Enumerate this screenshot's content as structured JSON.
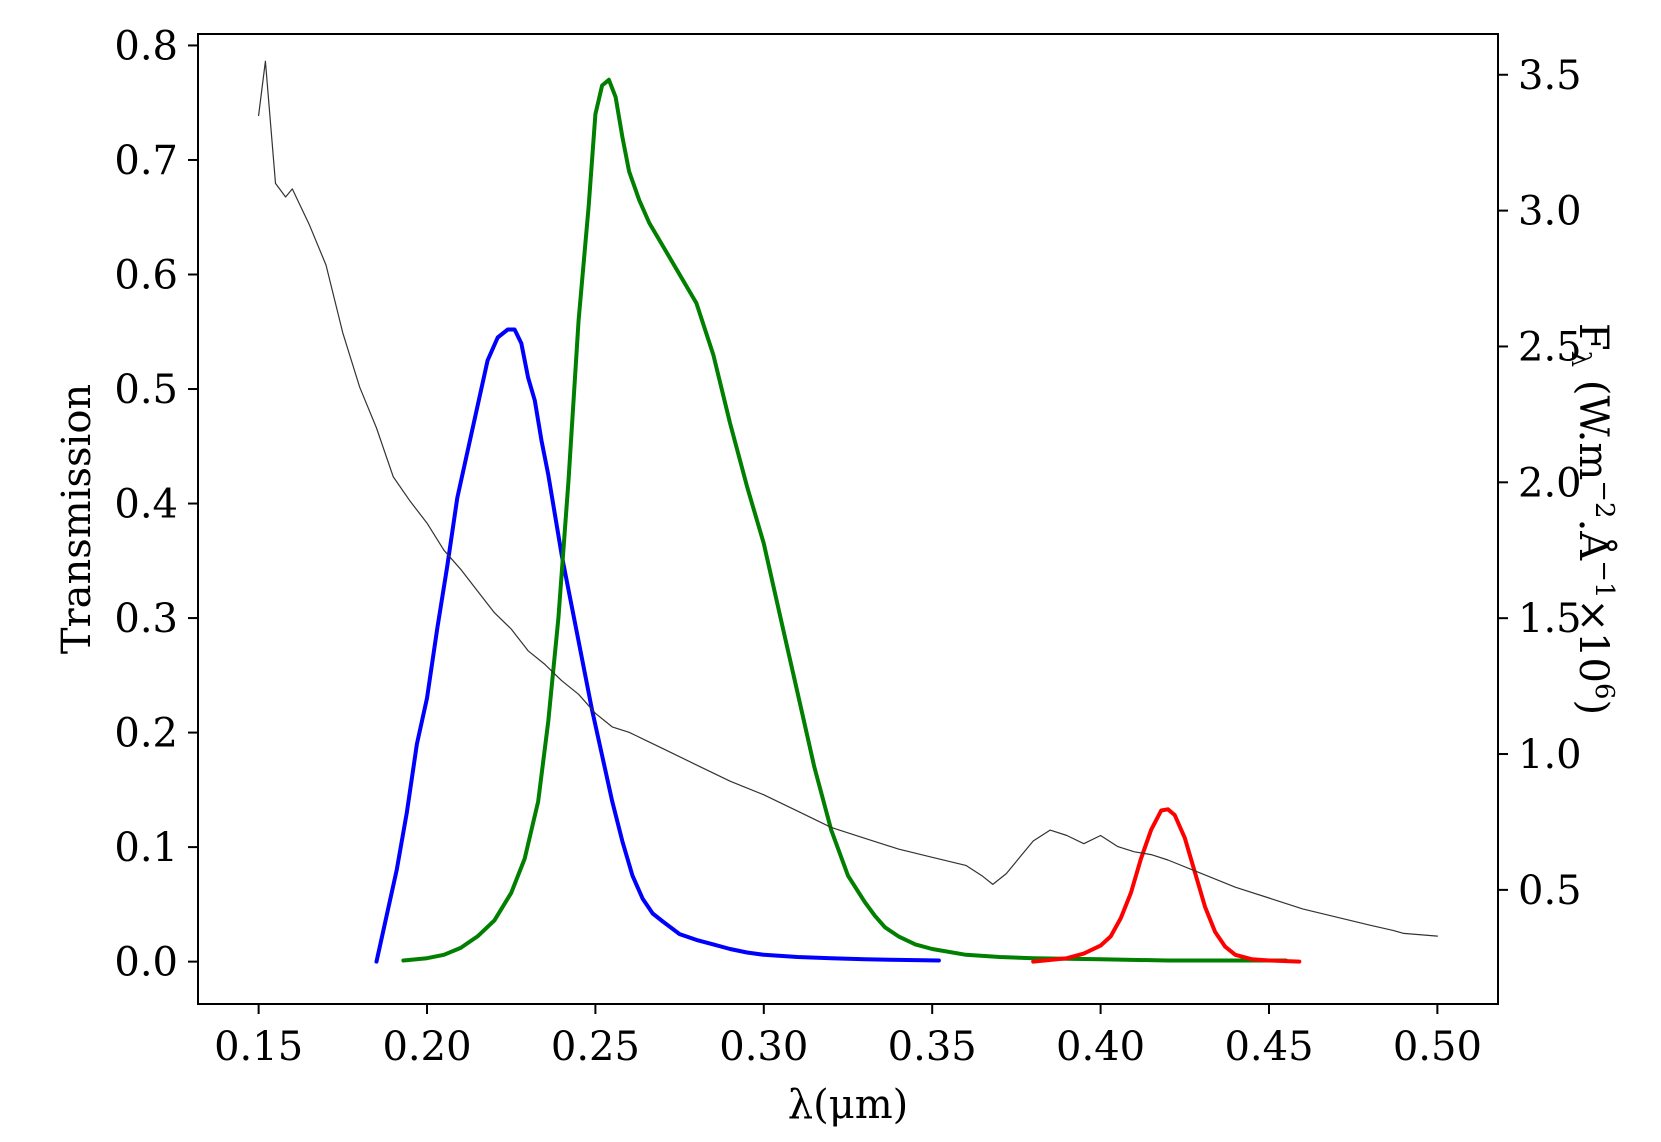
{
  "chart_data": {
    "type": "line",
    "title": "",
    "xlabel": "λ(μm)",
    "ylabel": "Transmission",
    "y2label": "F",
    "y2label_sub": "λ",
    "y2label_rest": " (W.m",
    "y2label_exp1": "−2",
    "y2label_mid": ".Å",
    "y2label_exp2": "−1",
    "y2label_times": "×10",
    "y2label_exp3": "6",
    "y2label_close": ")",
    "xlim": [
      0.132,
      0.518
    ],
    "ylim": [
      -0.037,
      0.81
    ],
    "y2lim": [
      0.08,
      3.65
    ],
    "grid": false,
    "legend": "none",
    "x_ticks": [
      "0.15",
      "0.20",
      "0.25",
      "0.30",
      "0.35",
      "0.40",
      "0.45",
      "0.50"
    ],
    "x_tick_values": [
      0.15,
      0.2,
      0.25,
      0.3,
      0.35,
      0.4,
      0.45,
      0.5
    ],
    "y_ticks": [
      "0.0",
      "0.1",
      "0.2",
      "0.3",
      "0.4",
      "0.5",
      "0.6",
      "0.7",
      "0.8"
    ],
    "y_tick_values": [
      0.0,
      0.1,
      0.2,
      0.3,
      0.4,
      0.5,
      0.6,
      0.7,
      0.8
    ],
    "y2_ticks": [
      "0.5",
      "1.0",
      "1.5",
      "2.0",
      "2.5",
      "3.0",
      "3.5"
    ],
    "y2_tick_values": [
      0.5,
      1.0,
      1.5,
      2.0,
      2.5,
      3.0,
      3.5
    ],
    "series": [
      {
        "axis": "left",
        "color": "#0000ff",
        "x": [
          0.185,
          0.188,
          0.191,
          0.194,
          0.197,
          0.2,
          0.203,
          0.206,
          0.209,
          0.212,
          0.215,
          0.218,
          0.221,
          0.224,
          0.226,
          0.228,
          0.23,
          0.232,
          0.234,
          0.236,
          0.238,
          0.24,
          0.243,
          0.246,
          0.249,
          0.252,
          0.255,
          0.258,
          0.261,
          0.264,
          0.267,
          0.27,
          0.275,
          0.28,
          0.285,
          0.29,
          0.295,
          0.3,
          0.31,
          0.32,
          0.33,
          0.34,
          0.352
        ],
        "y": [
          0.0,
          0.04,
          0.08,
          0.13,
          0.19,
          0.23,
          0.29,
          0.345,
          0.405,
          0.445,
          0.485,
          0.525,
          0.545,
          0.552,
          0.552,
          0.54,
          0.51,
          0.49,
          0.455,
          0.425,
          0.39,
          0.355,
          0.31,
          0.265,
          0.22,
          0.18,
          0.14,
          0.105,
          0.075,
          0.055,
          0.042,
          0.035,
          0.024,
          0.019,
          0.015,
          0.011,
          0.008,
          0.006,
          0.004,
          0.003,
          0.002,
          0.0015,
          0.001
        ]
      },
      {
        "axis": "left",
        "color": "#007f00",
        "x": [
          0.193,
          0.2,
          0.205,
          0.21,
          0.215,
          0.22,
          0.225,
          0.229,
          0.233,
          0.236,
          0.239,
          0.242,
          0.245,
          0.248,
          0.25,
          0.252,
          0.254,
          0.256,
          0.258,
          0.26,
          0.263,
          0.266,
          0.27,
          0.275,
          0.28,
          0.285,
          0.29,
          0.295,
          0.3,
          0.305,
          0.31,
          0.315,
          0.32,
          0.325,
          0.33,
          0.333,
          0.336,
          0.34,
          0.345,
          0.35,
          0.36,
          0.37,
          0.38,
          0.4,
          0.42,
          0.44,
          0.455
        ],
        "y": [
          0.001,
          0.003,
          0.006,
          0.012,
          0.022,
          0.036,
          0.06,
          0.09,
          0.14,
          0.21,
          0.3,
          0.42,
          0.56,
          0.66,
          0.74,
          0.765,
          0.77,
          0.755,
          0.72,
          0.69,
          0.665,
          0.645,
          0.625,
          0.6,
          0.575,
          0.53,
          0.47,
          0.415,
          0.365,
          0.3,
          0.235,
          0.17,
          0.115,
          0.075,
          0.052,
          0.04,
          0.03,
          0.022,
          0.015,
          0.011,
          0.006,
          0.004,
          0.003,
          0.002,
          0.001,
          0.001,
          0.001
        ]
      },
      {
        "axis": "left",
        "color": "#ff0000",
        "x": [
          0.38,
          0.39,
          0.395,
          0.4,
          0.403,
          0.406,
          0.409,
          0.412,
          0.415,
          0.418,
          0.42,
          0.422,
          0.425,
          0.428,
          0.431,
          0.434,
          0.437,
          0.44,
          0.445,
          0.45,
          0.459
        ],
        "y": [
          0.0,
          0.003,
          0.007,
          0.014,
          0.022,
          0.038,
          0.06,
          0.09,
          0.115,
          0.132,
          0.133,
          0.128,
          0.108,
          0.078,
          0.048,
          0.026,
          0.013,
          0.006,
          0.002,
          0.001,
          0.0
        ]
      },
      {
        "axis": "right",
        "color": "#333333",
        "x": [
          0.15,
          0.152,
          0.155,
          0.158,
          0.16,
          0.165,
          0.17,
          0.175,
          0.18,
          0.185,
          0.19,
          0.195,
          0.2,
          0.205,
          0.21,
          0.215,
          0.22,
          0.225,
          0.23,
          0.235,
          0.24,
          0.245,
          0.25,
          0.255,
          0.26,
          0.265,
          0.27,
          0.28,
          0.29,
          0.3,
          0.31,
          0.32,
          0.33,
          0.34,
          0.35,
          0.36,
          0.365,
          0.368,
          0.372,
          0.38,
          0.385,
          0.39,
          0.395,
          0.4,
          0.405,
          0.41,
          0.415,
          0.42,
          0.43,
          0.44,
          0.45,
          0.46,
          0.47,
          0.48,
          0.487,
          0.49,
          0.5
        ],
        "y": [
          3.35,
          3.55,
          3.1,
          3.05,
          3.08,
          2.95,
          2.8,
          2.55,
          2.35,
          2.2,
          2.02,
          1.93,
          1.85,
          1.75,
          1.68,
          1.6,
          1.52,
          1.46,
          1.38,
          1.33,
          1.27,
          1.22,
          1.15,
          1.1,
          1.08,
          1.05,
          1.02,
          0.96,
          0.9,
          0.85,
          0.79,
          0.73,
          0.69,
          0.65,
          0.62,
          0.59,
          0.55,
          0.52,
          0.56,
          0.68,
          0.72,
          0.7,
          0.67,
          0.7,
          0.66,
          0.64,
          0.63,
          0.61,
          0.56,
          0.51,
          0.47,
          0.43,
          0.4,
          0.37,
          0.35,
          0.34,
          0.33
        ]
      }
    ]
  }
}
